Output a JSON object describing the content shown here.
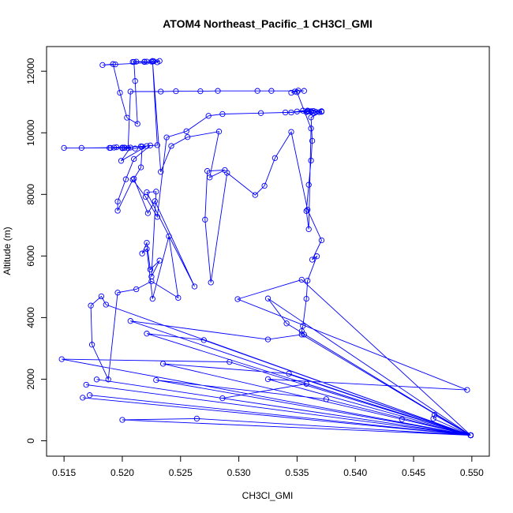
{
  "chart_data": {
    "type": "line",
    "title": "ATOM4 Northeast_Pacific_1 CH3Cl_GMI",
    "xlabel": "CH3Cl_GMI",
    "ylabel": "Altitude (m)",
    "xlim": [
      0.5135,
      0.5515
    ],
    "ylim": [
      -500,
      12800
    ],
    "x_ticks": [
      0.515,
      0.52,
      0.525,
      0.53,
      0.535,
      0.54,
      0.545,
      0.55
    ],
    "x_tick_labels": [
      "0.515",
      "0.520",
      "0.525",
      "0.530",
      "0.535",
      "0.540",
      "0.545",
      "0.550"
    ],
    "y_ticks": [
      0,
      2000,
      4000,
      6000,
      8000,
      10000,
      12000
    ],
    "y_tick_labels": [
      "0",
      "2000",
      "4000",
      "6000",
      "8000",
      "10000",
      "12000"
    ],
    "grid": false,
    "legend": "none",
    "colors": {
      "series": "#0000ff",
      "axes": "#000000",
      "background": "#ffffff"
    },
    "series": [
      {
        "x": [
          0.5499,
          0.5467,
          0.5468,
          0.5499,
          0.544,
          0.5499,
          0.5264,
          0.52,
          0.5499,
          0.5375,
          0.5229,
          0.5499,
          0.5358,
          0.5286,
          0.5499,
          0.5343,
          0.5235,
          0.5499,
          0.5166,
          0.5499,
          0.5172,
          0.5499,
          0.5169,
          0.5499,
          0.5178,
          0.5499,
          0.5292,
          0.5148,
          0.5499,
          0.527,
          0.5221,
          0.5499,
          0.5354,
          0.5325,
          0.5207,
          0.5499,
          0.5341,
          0.5325,
          0.5499,
          0.5325,
          0.5496,
          0.5299,
          0.5354,
          0.5499,
          0.5186,
          0.5182,
          0.5173,
          0.5174,
          0.5188,
          0.5196,
          0.5212,
          0.5225,
          0.5248,
          0.524,
          0.5226,
          0.5221,
          0.5217,
          0.5221,
          0.5224,
          0.5232,
          0.5225,
          0.5229,
          0.5221,
          0.5262,
          0.5228,
          0.5222,
          0.521,
          0.5216,
          0.5217,
          0.5224,
          0.521,
          0.5203,
          0.5196,
          0.5196,
          0.5209,
          0.522,
          0.523,
          0.5238,
          0.5255,
          0.5274,
          0.5286,
          0.5319,
          0.534,
          0.5359,
          0.5364,
          0.5371,
          0.5359,
          0.5345,
          0.535,
          0.5355,
          0.5358,
          0.536,
          0.5362,
          0.5362,
          0.5364,
          0.5366,
          0.5369,
          0.5371,
          0.5362,
          0.5363,
          0.5362,
          0.536,
          0.5358,
          0.536,
          0.5362,
          0.535,
          0.5348,
          0.5345,
          0.5351,
          0.5356,
          0.5328,
          0.5316,
          0.5282,
          0.5267,
          0.5246,
          0.5233,
          0.5207,
          0.5205,
          0.5202,
          0.5195,
          0.5193,
          0.519,
          0.52,
          0.5211,
          0.5221,
          0.5199,
          0.5207,
          0.5202,
          0.5189,
          0.515,
          0.5165,
          0.52,
          0.5216,
          0.523,
          0.5226,
          0.5225,
          0.5221,
          0.5209,
          0.5212,
          0.5219,
          0.5227,
          0.5232,
          0.523,
          0.5194,
          0.5183,
          0.5192,
          0.5198,
          0.5204,
          0.5213,
          0.5211,
          0.521,
          0.5219,
          0.5226,
          0.5233,
          0.5242,
          0.5256,
          0.5283,
          0.5275,
          0.5288,
          0.5273,
          0.5271,
          0.5276,
          0.529,
          0.5314,
          0.5322,
          0.5331,
          0.5345,
          0.5359,
          0.5371,
          0.5363,
          0.5367,
          0.5359,
          0.5358,
          0.5355,
          0.5354,
          0.5356
        ],
        "y": [
          180,
          720,
          840,
          180,
          700,
          180,
          720,
          680,
          180,
          1350,
          1970,
          180,
          1850,
          1380,
          180,
          2180,
          2500,
          180,
          1400,
          180,
          1480,
          180,
          1820,
          180,
          1990,
          180,
          2560,
          2650,
          180,
          3270,
          3480,
          180,
          3450,
          3290,
          3890,
          180,
          3810,
          4620,
          180,
          2000,
          1650,
          4600,
          5230,
          180,
          4420,
          4690,
          4390,
          3120,
          1990,
          4810,
          4920,
          5180,
          4640,
          6640,
          4610,
          6230,
          6080,
          6430,
          5560,
          5850,
          5330,
          8090,
          8070,
          5010,
          7780,
          7390,
          8510,
          8880,
          9550,
          9590,
          9150,
          8490,
          7770,
          7470,
          8480,
          7920,
          7270,
          9850,
          10050,
          10550,
          10610,
          10640,
          10660,
          10690,
          10650,
          10700,
          10720,
          10660,
          10690,
          10720,
          10670,
          10700,
          10680,
          10700,
          10710,
          10680,
          10670,
          10680,
          10500,
          9740,
          9100,
          8310,
          7460,
          6870,
          10140,
          11320,
          11340,
          11300,
          11370,
          11360,
          11360,
          11360,
          11360,
          11350,
          11350,
          11340,
          11340,
          9500,
          9520,
          9530,
          9520,
          9510,
          9500,
          9490,
          9570,
          9090,
          9520,
          9510,
          9510,
          9510,
          9510,
          9520,
          9560,
          9600,
          12330,
          12310,
          12310,
          12300,
          12310,
          12310,
          12320,
          12330,
          12290,
          12220,
          12200,
          12230,
          11300,
          10490,
          10290,
          11680,
          12300,
          12300,
          12320,
          8730,
          9570,
          9860,
          10040,
          8550,
          8790,
          8760,
          7180,
          5140,
          8700,
          7980,
          8280,
          9180,
          10030,
          7500,
          6510,
          5880,
          5990,
          5200,
          4610,
          3730,
          3560,
          3450
        ]
      }
    ]
  }
}
